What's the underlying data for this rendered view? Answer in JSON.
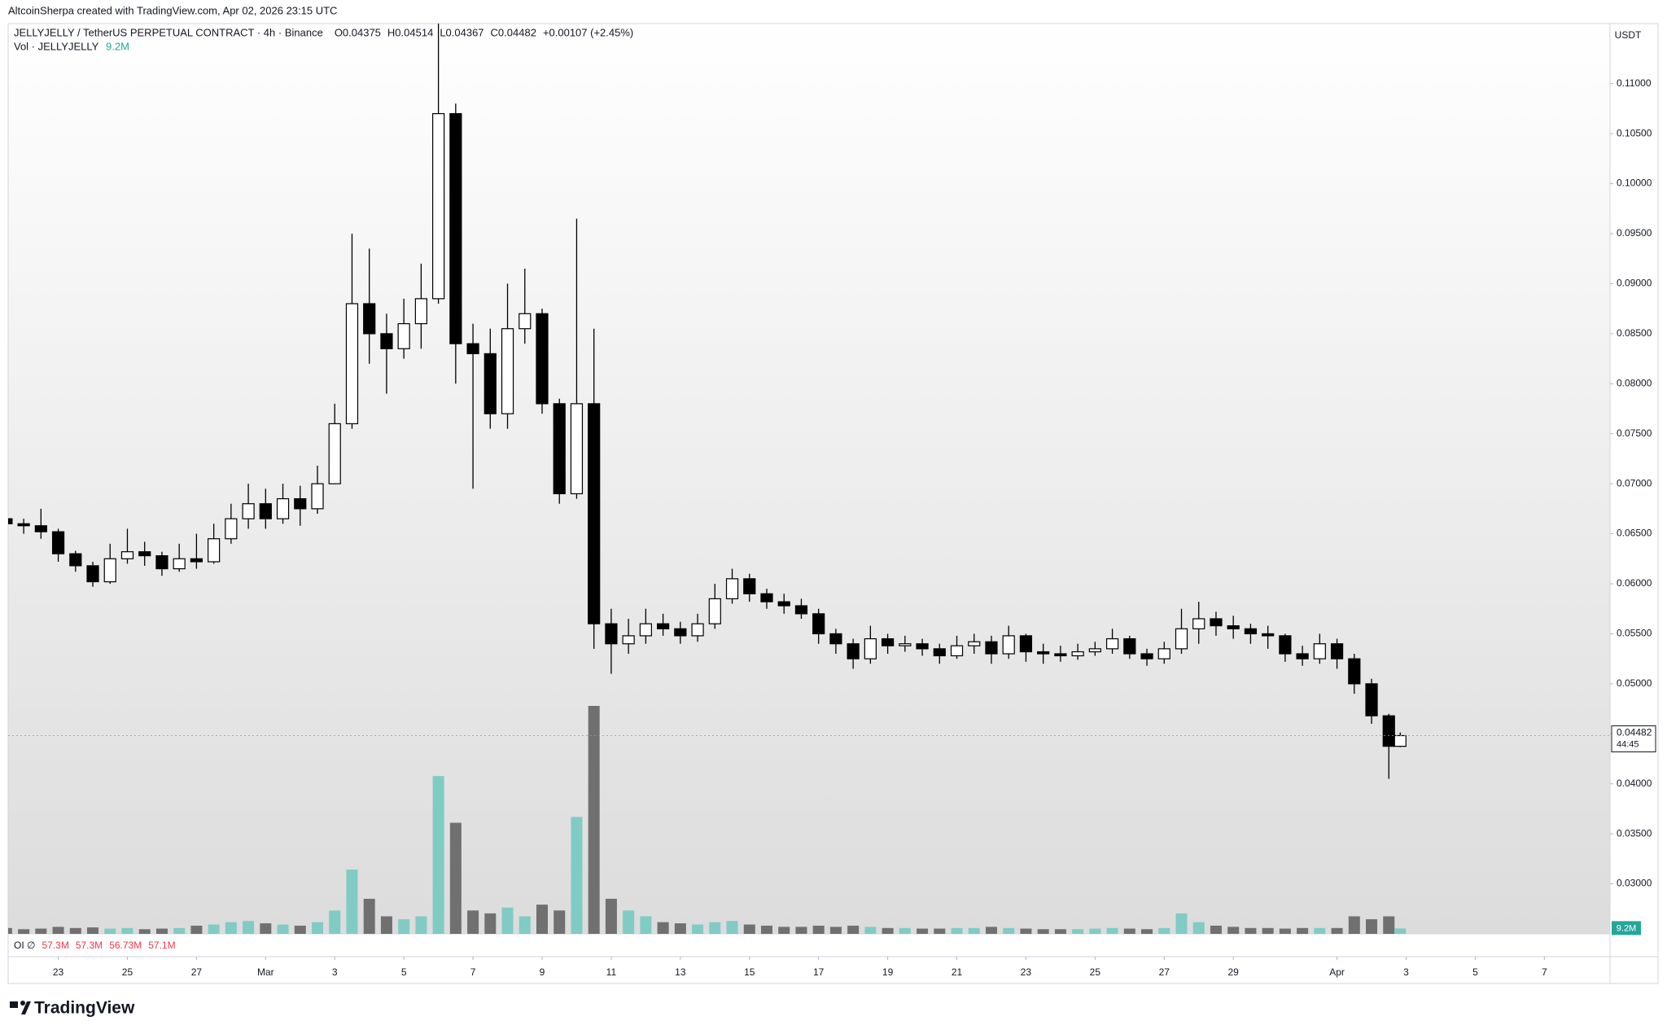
{
  "chart_data": {
    "type": "candlestick",
    "credit": "AltcoinSherpa created with TradingView.com, Apr 02, 2026 23:15 UTC",
    "symbol": "JELLYJELLY / TetherUS PERPETUAL CONTRACT · 4h · Binance",
    "ohlc_header": [
      "O0.04375",
      "H0.04514",
      "L0.04367",
      "C0.04482",
      "+0.00107 (+2.45%)"
    ],
    "vol_name": "Vol · JELLYJELLY",
    "volume_label": "9.2M",
    "oi_name": "OI ∅",
    "oi_values": [
      "57.3M",
      "57.3M",
      "56.73M",
      "57.1M"
    ],
    "currency": "USDT",
    "price_label": "0.04482",
    "countdown": "44:45",
    "brand": "TradingView",
    "up_color": "#ffffff",
    "down_color": "#000000",
    "vol_up_color": "#80cbc4",
    "vol_down_color": "#707070",
    "x": [
      21.5,
      22,
      22.5,
      23,
      23.5,
      24,
      24.5,
      25,
      25.5,
      26,
      26.5,
      27,
      27.5,
      28,
      28.5,
      29,
      29.5,
      30,
      30.5,
      31,
      31.5,
      32,
      32.5,
      33,
      33.5,
      34,
      34.5,
      35,
      35.5,
      36,
      36.5,
      37,
      37.5,
      38,
      38.5,
      39,
      39.5,
      40,
      40.5,
      41,
      41.5,
      42,
      42.5,
      43,
      43.5,
      44,
      44.5,
      45,
      45.5,
      46,
      46.5,
      47,
      47.5,
      48,
      48.5,
      49,
      49.5,
      50,
      50.5,
      51,
      51.5,
      52,
      52.5,
      53,
      53.5,
      54,
      54.5,
      55,
      55.5,
      56,
      56.5,
      57,
      57.5,
      58,
      58.5,
      59,
      59.5,
      60,
      60.5,
      61,
      61.5,
      61.83
    ],
    "open": [
      0.0665,
      0.066,
      0.0658,
      0.0652,
      0.063,
      0.0618,
      0.0602,
      0.0625,
      0.0632,
      0.0628,
      0.0615,
      0.0625,
      0.0622,
      0.0645,
      0.0665,
      0.068,
      0.0665,
      0.0685,
      0.0675,
      0.07,
      0.076,
      0.088,
      0.085,
      0.0835,
      0.086,
      0.0885,
      0.107,
      0.084,
      0.083,
      0.077,
      0.0855,
      0.087,
      0.078,
      0.069,
      0.078,
      0.056,
      0.054,
      0.0548,
      0.056,
      0.0555,
      0.0548,
      0.056,
      0.0585,
      0.0605,
      0.059,
      0.0582,
      0.0578,
      0.057,
      0.055,
      0.054,
      0.0525,
      0.0545,
      0.0538,
      0.054,
      0.0535,
      0.0528,
      0.0538,
      0.0542,
      0.053,
      0.0548,
      0.0532,
      0.053,
      0.0528,
      0.0532,
      0.0535,
      0.0545,
      0.053,
      0.0525,
      0.0535,
      0.0555,
      0.0565,
      0.0558,
      0.0555,
      0.055,
      0.0548,
      0.053,
      0.0525,
      0.054,
      0.0525,
      0.05,
      0.0468,
      0.04375
    ],
    "high": [
      0.0668,
      0.0665,
      0.0675,
      0.0655,
      0.0633,
      0.0622,
      0.064,
      0.0655,
      0.0642,
      0.0632,
      0.064,
      0.065,
      0.066,
      0.068,
      0.07,
      0.0695,
      0.07,
      0.0698,
      0.0718,
      0.078,
      0.095,
      0.0935,
      0.087,
      0.0885,
      0.092,
      0.116,
      0.108,
      0.086,
      0.0855,
      0.09,
      0.0915,
      0.0875,
      0.0785,
      0.0965,
      0.0855,
      0.0575,
      0.0565,
      0.0575,
      0.057,
      0.0562,
      0.057,
      0.06,
      0.0615,
      0.061,
      0.0595,
      0.059,
      0.0585,
      0.0575,
      0.0555,
      0.0545,
      0.0558,
      0.055,
      0.0548,
      0.0545,
      0.054,
      0.0548,
      0.055,
      0.0548,
      0.0558,
      0.055,
      0.054,
      0.0538,
      0.054,
      0.0542,
      0.0555,
      0.0548,
      0.0535,
      0.0542,
      0.0575,
      0.0582,
      0.0572,
      0.0568,
      0.056,
      0.0558,
      0.055,
      0.0538,
      0.055,
      0.0545,
      0.053,
      0.0505,
      0.047,
      0.04514
    ],
    "low": [
      0.0655,
      0.065,
      0.0645,
      0.0622,
      0.0612,
      0.0597,
      0.06,
      0.062,
      0.0618,
      0.0608,
      0.0612,
      0.0615,
      0.062,
      0.064,
      0.0655,
      0.0655,
      0.066,
      0.0658,
      0.067,
      0.07,
      0.0755,
      0.082,
      0.079,
      0.0825,
      0.0835,
      0.088,
      0.08,
      0.0695,
      0.0755,
      0.0755,
      0.084,
      0.077,
      0.068,
      0.0685,
      0.0535,
      0.051,
      0.053,
      0.054,
      0.0548,
      0.054,
      0.0542,
      0.0555,
      0.058,
      0.0582,
      0.0575,
      0.057,
      0.0565,
      0.054,
      0.053,
      0.0515,
      0.052,
      0.053,
      0.0532,
      0.0528,
      0.052,
      0.0525,
      0.053,
      0.052,
      0.0525,
      0.0522,
      0.052,
      0.0522,
      0.0524,
      0.0528,
      0.053,
      0.0525,
      0.0518,
      0.052,
      0.053,
      0.054,
      0.0548,
      0.0545,
      0.054,
      0.0535,
      0.0522,
      0.0518,
      0.052,
      0.0515,
      0.049,
      0.046,
      0.0405,
      0.04367
    ],
    "close": [
      0.066,
      0.0658,
      0.0652,
      0.063,
      0.0618,
      0.0602,
      0.0625,
      0.0632,
      0.0628,
      0.0615,
      0.0625,
      0.0622,
      0.0645,
      0.0665,
      0.068,
      0.0665,
      0.0685,
      0.0675,
      0.07,
      0.076,
      0.088,
      0.085,
      0.0835,
      0.086,
      0.0885,
      0.107,
      0.084,
      0.083,
      0.077,
      0.0855,
      0.087,
      0.078,
      0.069,
      0.078,
      0.056,
      0.054,
      0.0548,
      0.056,
      0.0555,
      0.0548,
      0.056,
      0.0585,
      0.0605,
      0.059,
      0.0582,
      0.0578,
      0.057,
      0.055,
      0.054,
      0.0525,
      0.0545,
      0.0538,
      0.054,
      0.0535,
      0.0528,
      0.0538,
      0.0542,
      0.053,
      0.0548,
      0.0532,
      0.053,
      0.0528,
      0.0532,
      0.0535,
      0.0545,
      0.053,
      0.0525,
      0.0535,
      0.0555,
      0.0565,
      0.0558,
      0.0555,
      0.055,
      0.0548,
      0.053,
      0.0525,
      0.054,
      0.0525,
      0.05,
      0.0468,
      0.04375,
      0.04482
    ],
    "volume": [
      10,
      8,
      9,
      12,
      10,
      11,
      9,
      10,
      8,
      9,
      10,
      14,
      16,
      20,
      22,
      18,
      16,
      14,
      20,
      40,
      110,
      60,
      30,
      25,
      30,
      270,
      190,
      40,
      35,
      45,
      30,
      50,
      40,
      200,
      390,
      60,
      40,
      30,
      20,
      18,
      16,
      20,
      22,
      16,
      14,
      12,
      12,
      14,
      12,
      14,
      12,
      10,
      10,
      9,
      9,
      10,
      10,
      12,
      10,
      9,
      8,
      8,
      8,
      9,
      10,
      9,
      8,
      10,
      35,
      20,
      14,
      12,
      10,
      10,
      9,
      10,
      10,
      10,
      30,
      25,
      30,
      9.2
    ],
    "xlim": [
      21.55,
      67.9
    ],
    "xticks": [
      {
        "value": 23,
        "label": "23"
      },
      {
        "value": 25,
        "label": "25"
      },
      {
        "value": 27,
        "label": "27"
      },
      {
        "value": 29,
        "label": "Mar"
      },
      {
        "value": 31,
        "label": "3"
      },
      {
        "value": 33,
        "label": "5"
      },
      {
        "value": 35,
        "label": "7"
      },
      {
        "value": 37,
        "label": "9"
      },
      {
        "value": 39,
        "label": "11"
      },
      {
        "value": 41,
        "label": "13"
      },
      {
        "value": 43,
        "label": "15"
      },
      {
        "value": 45,
        "label": "17"
      },
      {
        "value": 47,
        "label": "19"
      },
      {
        "value": 49,
        "label": "21"
      },
      {
        "value": 51,
        "label": "23"
      },
      {
        "value": 53,
        "label": "25"
      },
      {
        "value": 55,
        "label": "27"
      },
      {
        "value": 57,
        "label": "29"
      },
      {
        "value": 60,
        "label": "Apr"
      },
      {
        "value": 62,
        "label": "3"
      },
      {
        "value": 64,
        "label": "5"
      },
      {
        "value": 66,
        "label": "7"
      }
    ],
    "ylim": [
      0.025,
      0.116
    ],
    "yticks": [
      {
        "value": 0.03,
        "label": "0.03000"
      },
      {
        "value": 0.035,
        "label": "0.03500"
      },
      {
        "value": 0.04,
        "label": "0.04000"
      },
      {
        "value": 0.045,
        "label": "0.04500"
      },
      {
        "value": 0.05,
        "label": "0.05000"
      },
      {
        "value": 0.055,
        "label": "0.05500"
      },
      {
        "value": 0.06,
        "label": "0.06000"
      },
      {
        "value": 0.065,
        "label": "0.06500"
      },
      {
        "value": 0.07,
        "label": "0.07000"
      },
      {
        "value": 0.075,
        "label": "0.07500"
      },
      {
        "value": 0.08,
        "label": "0.08000"
      },
      {
        "value": 0.085,
        "label": "0.08500"
      },
      {
        "value": 0.09,
        "label": "0.09000"
      },
      {
        "value": 0.095,
        "label": "0.09500"
      },
      {
        "value": 0.1,
        "label": "0.10000"
      },
      {
        "value": 0.105,
        "label": "0.10500"
      },
      {
        "value": 0.11,
        "label": "0.11000"
      }
    ],
    "grid": false
  }
}
